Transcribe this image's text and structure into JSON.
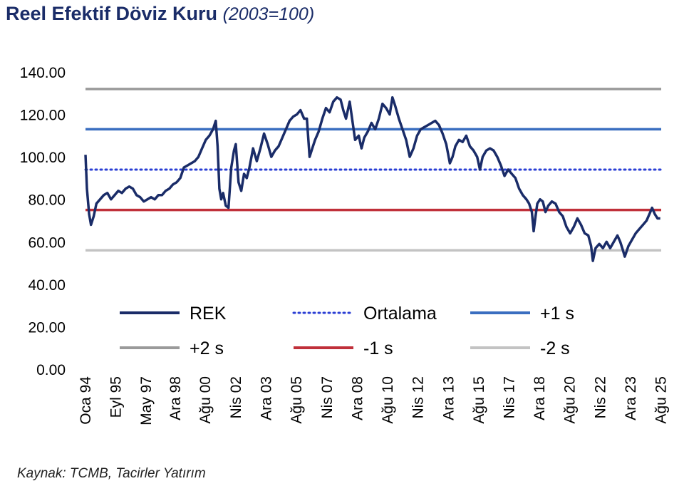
{
  "header": {
    "title": "Reel Efektif Döviz Kuru",
    "subtitle": "(2003=100)"
  },
  "footer": {
    "source": "Kaynak: TCMB, Tacirler Yatırım"
  },
  "chart_data": {
    "type": "line",
    "title": "Reel Efektif Döviz Kuru",
    "subtitle": "(2003=100)",
    "ylim": [
      0,
      140
    ],
    "yticks": [
      "0.00",
      "20.00",
      "40.00",
      "60.00",
      "80.00",
      "100.00",
      "120.00",
      "140.00"
    ],
    "xlim": [
      1994.0,
      2025.6
    ],
    "xticks": [
      {
        "label": "Oca 94",
        "x": 1994.0
      },
      {
        "label": "Eyl 95",
        "x": 1995.67
      },
      {
        "label": "May 97",
        "x": 1997.33
      },
      {
        "label": "Ara 98",
        "x": 1998.92
      },
      {
        "label": "Ağu 00",
        "x": 2000.58
      },
      {
        "label": "Nis 02",
        "x": 2002.25
      },
      {
        "label": "Ara 03",
        "x": 2003.92
      },
      {
        "label": "Ağu 05",
        "x": 2005.58
      },
      {
        "label": "Nis 07",
        "x": 2007.25
      },
      {
        "label": "Ara 08",
        "x": 2008.92
      },
      {
        "label": "Ağu 10",
        "x": 2010.58
      },
      {
        "label": "Nis 12",
        "x": 2012.25
      },
      {
        "label": "Ara 13",
        "x": 2013.92
      },
      {
        "label": "Ağu 15",
        "x": 2015.58
      },
      {
        "label": "Nis 17",
        "x": 2017.25
      },
      {
        "label": "Ara 18",
        "x": 2018.92
      },
      {
        "label": "Ağu 20",
        "x": 2020.58
      },
      {
        "label": "Nis 22",
        "x": 2022.25
      },
      {
        "label": "Ara 23",
        "x": 2023.92
      },
      {
        "label": "Ağu 25",
        "x": 2025.58
      }
    ],
    "grid": false,
    "legend_position": "bottom-inside",
    "series": [
      {
        "name": "REK",
        "color": "#1a2c68",
        "style": "solid",
        "points": [
          [
            1994.0,
            101
          ],
          [
            1994.08,
            85
          ],
          [
            1994.2,
            73
          ],
          [
            1994.3,
            68
          ],
          [
            1994.45,
            72
          ],
          [
            1994.6,
            78
          ],
          [
            1994.8,
            80
          ],
          [
            1995.0,
            82
          ],
          [
            1995.2,
            83
          ],
          [
            1995.4,
            80
          ],
          [
            1995.6,
            82
          ],
          [
            1995.8,
            84
          ],
          [
            1996.0,
            83
          ],
          [
            1996.2,
            85
          ],
          [
            1996.4,
            86
          ],
          [
            1996.6,
            85
          ],
          [
            1996.8,
            82
          ],
          [
            1997.0,
            81
          ],
          [
            1997.2,
            79
          ],
          [
            1997.4,
            80
          ],
          [
            1997.6,
            81
          ],
          [
            1997.8,
            80
          ],
          [
            1998.0,
            82
          ],
          [
            1998.2,
            82
          ],
          [
            1998.4,
            84
          ],
          [
            1998.6,
            85
          ],
          [
            1998.8,
            87
          ],
          [
            1999.0,
            88
          ],
          [
            1999.2,
            90
          ],
          [
            1999.4,
            95
          ],
          [
            1999.6,
            96
          ],
          [
            1999.8,
            97
          ],
          [
            2000.0,
            98
          ],
          [
            2000.2,
            100
          ],
          [
            2000.4,
            104
          ],
          [
            2000.6,
            108
          ],
          [
            2000.8,
            110
          ],
          [
            2001.0,
            113
          ],
          [
            2001.15,
            117
          ],
          [
            2001.25,
            105
          ],
          [
            2001.35,
            85
          ],
          [
            2001.45,
            80
          ],
          [
            2001.55,
            83
          ],
          [
            2001.7,
            77
          ],
          [
            2001.85,
            76
          ],
          [
            2002.0,
            95
          ],
          [
            2002.15,
            103
          ],
          [
            2002.25,
            106
          ],
          [
            2002.4,
            88
          ],
          [
            2002.55,
            84
          ],
          [
            2002.7,
            92
          ],
          [
            2002.85,
            90
          ],
          [
            2003.0,
            95
          ],
          [
            2003.2,
            104
          ],
          [
            2003.4,
            98
          ],
          [
            2003.6,
            104
          ],
          [
            2003.8,
            111
          ],
          [
            2004.0,
            106
          ],
          [
            2004.2,
            100
          ],
          [
            2004.4,
            103
          ],
          [
            2004.6,
            105
          ],
          [
            2004.8,
            109
          ],
          [
            2005.0,
            113
          ],
          [
            2005.2,
            117
          ],
          [
            2005.4,
            119
          ],
          [
            2005.6,
            120
          ],
          [
            2005.8,
            122
          ],
          [
            2006.0,
            118
          ],
          [
            2006.15,
            118
          ],
          [
            2006.3,
            100
          ],
          [
            2006.45,
            104
          ],
          [
            2006.6,
            108
          ],
          [
            2006.8,
            112
          ],
          [
            2007.0,
            118
          ],
          [
            2007.2,
            123
          ],
          [
            2007.4,
            121
          ],
          [
            2007.6,
            126
          ],
          [
            2007.8,
            128
          ],
          [
            2008.0,
            127
          ],
          [
            2008.15,
            122
          ],
          [
            2008.3,
            118
          ],
          [
            2008.5,
            126
          ],
          [
            2008.65,
            117
          ],
          [
            2008.8,
            108
          ],
          [
            2009.0,
            110
          ],
          [
            2009.15,
            104
          ],
          [
            2009.3,
            109
          ],
          [
            2009.5,
            112
          ],
          [
            2009.7,
            116
          ],
          [
            2009.9,
            113
          ],
          [
            2010.1,
            118
          ],
          [
            2010.3,
            125
          ],
          [
            2010.5,
            123
          ],
          [
            2010.7,
            120
          ],
          [
            2010.85,
            128
          ],
          [
            2011.0,
            124
          ],
          [
            2011.2,
            118
          ],
          [
            2011.4,
            113
          ],
          [
            2011.6,
            108
          ],
          [
            2011.8,
            100
          ],
          [
            2012.0,
            104
          ],
          [
            2012.2,
            110
          ],
          [
            2012.4,
            113
          ],
          [
            2012.6,
            114
          ],
          [
            2012.8,
            115
          ],
          [
            2013.0,
            116
          ],
          [
            2013.2,
            117
          ],
          [
            2013.4,
            115
          ],
          [
            2013.6,
            111
          ],
          [
            2013.8,
            106
          ],
          [
            2014.0,
            97
          ],
          [
            2014.15,
            100
          ],
          [
            2014.3,
            105
          ],
          [
            2014.5,
            108
          ],
          [
            2014.7,
            107
          ],
          [
            2014.9,
            110
          ],
          [
            2015.1,
            105
          ],
          [
            2015.3,
            103
          ],
          [
            2015.5,
            100
          ],
          [
            2015.65,
            94
          ],
          [
            2015.8,
            100
          ],
          [
            2016.0,
            103
          ],
          [
            2016.2,
            104
          ],
          [
            2016.4,
            103
          ],
          [
            2016.6,
            100
          ],
          [
            2016.8,
            96
          ],
          [
            2017.0,
            91
          ],
          [
            2017.2,
            94
          ],
          [
            2017.4,
            92
          ],
          [
            2017.6,
            90
          ],
          [
            2017.8,
            85
          ],
          [
            2018.0,
            82
          ],
          [
            2018.2,
            80
          ],
          [
            2018.35,
            78
          ],
          [
            2018.5,
            74
          ],
          [
            2018.6,
            65
          ],
          [
            2018.7,
            72
          ],
          [
            2018.8,
            78
          ],
          [
            2018.95,
            80
          ],
          [
            2019.1,
            79
          ],
          [
            2019.25,
            74
          ],
          [
            2019.4,
            77
          ],
          [
            2019.6,
            79
          ],
          [
            2019.8,
            78
          ],
          [
            2020.0,
            74
          ],
          [
            2020.2,
            72
          ],
          [
            2020.4,
            67
          ],
          [
            2020.6,
            64
          ],
          [
            2020.8,
            67
          ],
          [
            2021.0,
            71
          ],
          [
            2021.2,
            68
          ],
          [
            2021.4,
            64
          ],
          [
            2021.6,
            63
          ],
          [
            2021.75,
            58
          ],
          [
            2021.85,
            51
          ],
          [
            2022.0,
            57
          ],
          [
            2022.2,
            59
          ],
          [
            2022.4,
            57
          ],
          [
            2022.6,
            60
          ],
          [
            2022.8,
            57
          ],
          [
            2023.0,
            60
          ],
          [
            2023.2,
            63
          ],
          [
            2023.35,
            60
          ],
          [
            2023.5,
            56
          ],
          [
            2023.6,
            53
          ],
          [
            2023.8,
            58
          ],
          [
            2024.0,
            61
          ],
          [
            2024.2,
            64
          ],
          [
            2024.4,
            66
          ],
          [
            2024.6,
            68
          ],
          [
            2024.8,
            70
          ],
          [
            2025.0,
            74
          ],
          [
            2025.1,
            76
          ],
          [
            2025.25,
            73
          ],
          [
            2025.4,
            71
          ],
          [
            2025.55,
            71
          ]
        ]
      },
      {
        "name": "Ortalama",
        "color": "#2b3fd4",
        "style": "dotted",
        "value": 94
      },
      {
        "name": "+1 s",
        "color": "#3a6ec0",
        "style": "solid",
        "value": 113
      },
      {
        "name": "+2 s",
        "color": "#9a9a9a",
        "style": "solid",
        "value": 132
      },
      {
        "name": "-1 s",
        "color": "#c0303a",
        "style": "solid",
        "value": 75
      },
      {
        "name": "-2 s",
        "color": "#c3c3c3",
        "style": "solid",
        "value": 56
      }
    ]
  }
}
